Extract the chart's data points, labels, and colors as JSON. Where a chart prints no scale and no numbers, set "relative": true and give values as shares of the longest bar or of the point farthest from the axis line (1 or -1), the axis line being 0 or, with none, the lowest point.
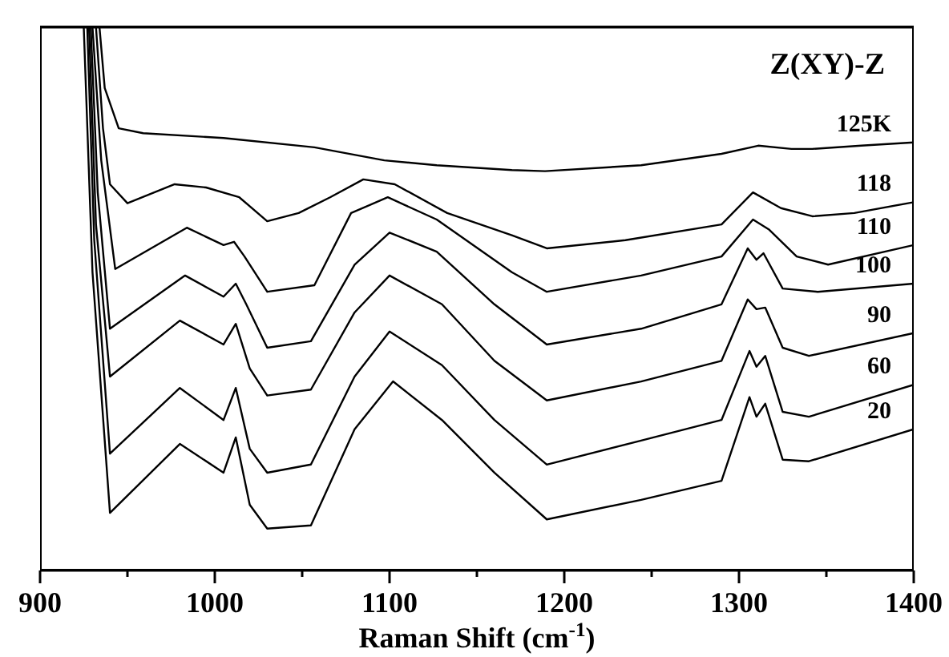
{
  "chart_data": {
    "type": "line",
    "title": "Z(XY)-Z",
    "xlabel": "Raman Shift (cm$^{-1}$)",
    "relative": true,
    "marker": "none",
    "line_style": "solid",
    "grid": false,
    "legend": false,
    "xlim": [
      900,
      1400
    ],
    "xticks": [
      900,
      {
        "value": 950,
        "label": null
      },
      1000,
      {
        "value": 1050,
        "label": null
      },
      1100,
      {
        "value": 1150,
        "label": null
      },
      1200,
      {
        "value": 1250,
        "label": null
      },
      1300,
      {
        "value": 1350,
        "label": null
      },
      1400
    ],
    "series": [
      {
        "name": "125K",
        "color": "#000000",
        "x": [
          934,
          937,
          945,
          959,
          1005,
          1057,
          1097,
          1127,
          1170,
          1189,
          1244,
          1290,
          1311,
          1330,
          1342,
          1370,
          1400
        ],
        "values": [
          1,
          0.888,
          0.814,
          0.805,
          0.796,
          0.779,
          0.755,
          0.746,
          0.737,
          0.735,
          0.746,
          0.767,
          0.782,
          0.776,
          0.776,
          0.782,
          0.788
        ]
      },
      {
        "name": "118",
        "color": "#000000",
        "x": [
          932,
          936,
          940,
          950,
          977,
          995,
          1014,
          1030,
          1048,
          1066,
          1085,
          1103,
          1133,
          1170,
          1190,
          1235,
          1290,
          1308,
          1324,
          1342,
          1366,
          1400
        ],
        "values": [
          1,
          0.814,
          0.711,
          0.676,
          0.711,
          0.705,
          0.687,
          0.643,
          0.658,
          0.687,
          0.72,
          0.711,
          0.658,
          0.617,
          0.593,
          0.608,
          0.637,
          0.696,
          0.667,
          0.652,
          0.658,
          0.678
        ]
      },
      {
        "name": "110",
        "color": "#000000",
        "x": [
          930,
          935,
          943,
          984,
          1005,
          1011,
          1017,
          1030,
          1057,
          1078,
          1099,
          1127,
          1170,
          1190,
          1244,
          1290,
          1308,
          1317,
          1333,
          1351,
          1400
        ],
        "values": [
          1,
          0.755,
          0.555,
          0.631,
          0.599,
          0.605,
          0.578,
          0.513,
          0.525,
          0.658,
          0.687,
          0.646,
          0.549,
          0.513,
          0.543,
          0.578,
          0.646,
          0.628,
          0.578,
          0.563,
          0.599
        ]
      },
      {
        "name": "100",
        "color": "#000000",
        "x": [
          929,
          933,
          940,
          983,
          1005,
          1012,
          1018,
          1030,
          1055,
          1080,
          1100,
          1127,
          1160,
          1190,
          1244,
          1290,
          1305,
          1310,
          1314,
          1325,
          1345,
          1400
        ],
        "values": [
          1,
          0.696,
          0.445,
          0.543,
          0.504,
          0.528,
          0.49,
          0.41,
          0.422,
          0.563,
          0.622,
          0.587,
          0.49,
          0.416,
          0.445,
          0.49,
          0.593,
          0.572,
          0.584,
          0.519,
          0.513,
          0.528
        ]
      },
      {
        "name": "90",
        "color": "#000000",
        "x": [
          928,
          932,
          940,
          980,
          1005,
          1012,
          1020,
          1030,
          1055,
          1080,
          1100,
          1130,
          1160,
          1190,
          1244,
          1290,
          1305,
          1310,
          1315,
          1325,
          1340,
          1400
        ],
        "values": [
          1,
          0.637,
          0.357,
          0.46,
          0.416,
          0.454,
          0.372,
          0.322,
          0.333,
          0.475,
          0.543,
          0.49,
          0.386,
          0.313,
          0.348,
          0.386,
          0.499,
          0.481,
          0.484,
          0.41,
          0.395,
          0.437
        ]
      },
      {
        "name": "60",
        "color": "#000000",
        "x": [
          927,
          931,
          940,
          980,
          1005,
          1012,
          1020,
          1030,
          1055,
          1080,
          1100,
          1130,
          1160,
          1190,
          1244,
          1290,
          1306,
          1310,
          1315,
          1325,
          1340,
          1400
        ],
        "values": [
          1,
          0.608,
          0.215,
          0.336,
          0.277,
          0.336,
          0.224,
          0.18,
          0.195,
          0.357,
          0.44,
          0.378,
          0.277,
          0.195,
          0.239,
          0.277,
          0.404,
          0.375,
          0.395,
          0.292,
          0.283,
          0.342
        ]
      },
      {
        "name": "20",
        "color": "#000000",
        "x": [
          925,
          930,
          940,
          980,
          1005,
          1012,
          1020,
          1030,
          1055,
          1080,
          1102,
          1130,
          1160,
          1190,
          1244,
          1290,
          1306,
          1310,
          1315,
          1325,
          1340,
          1400
        ],
        "values": [
          1,
          0.549,
          0.106,
          0.233,
          0.18,
          0.245,
          0.121,
          0.077,
          0.083,
          0.26,
          0.348,
          0.277,
          0.18,
          0.094,
          0.13,
          0.165,
          0.319,
          0.283,
          0.307,
          0.204,
          0.201,
          0.26
        ]
      }
    ]
  }
}
